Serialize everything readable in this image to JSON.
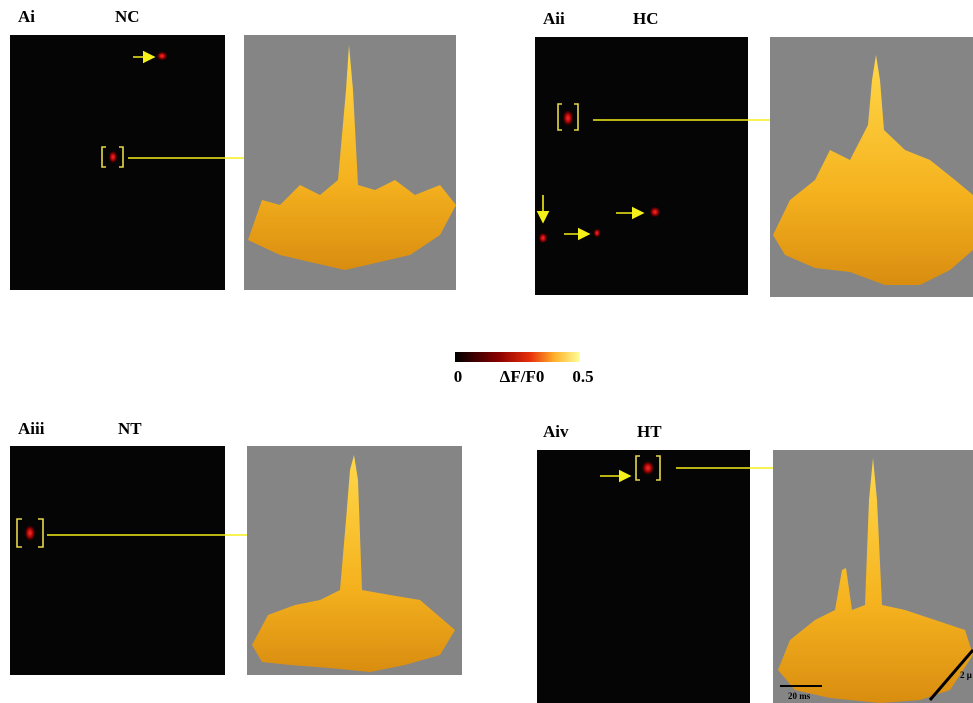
{
  "panels": [
    {
      "label": "Ai",
      "title": "NC"
    },
    {
      "label": "Aii",
      "title": "HC"
    },
    {
      "label": "Aiii",
      "title": "NT"
    },
    {
      "label": "Aiv",
      "title": "HT"
    }
  ],
  "colorbar": {
    "min_label": "0",
    "quantity": "ΔF/F0",
    "max_label": "0.5"
  },
  "scale_bars": {
    "time": "20 ms",
    "space": "2 μ"
  }
}
